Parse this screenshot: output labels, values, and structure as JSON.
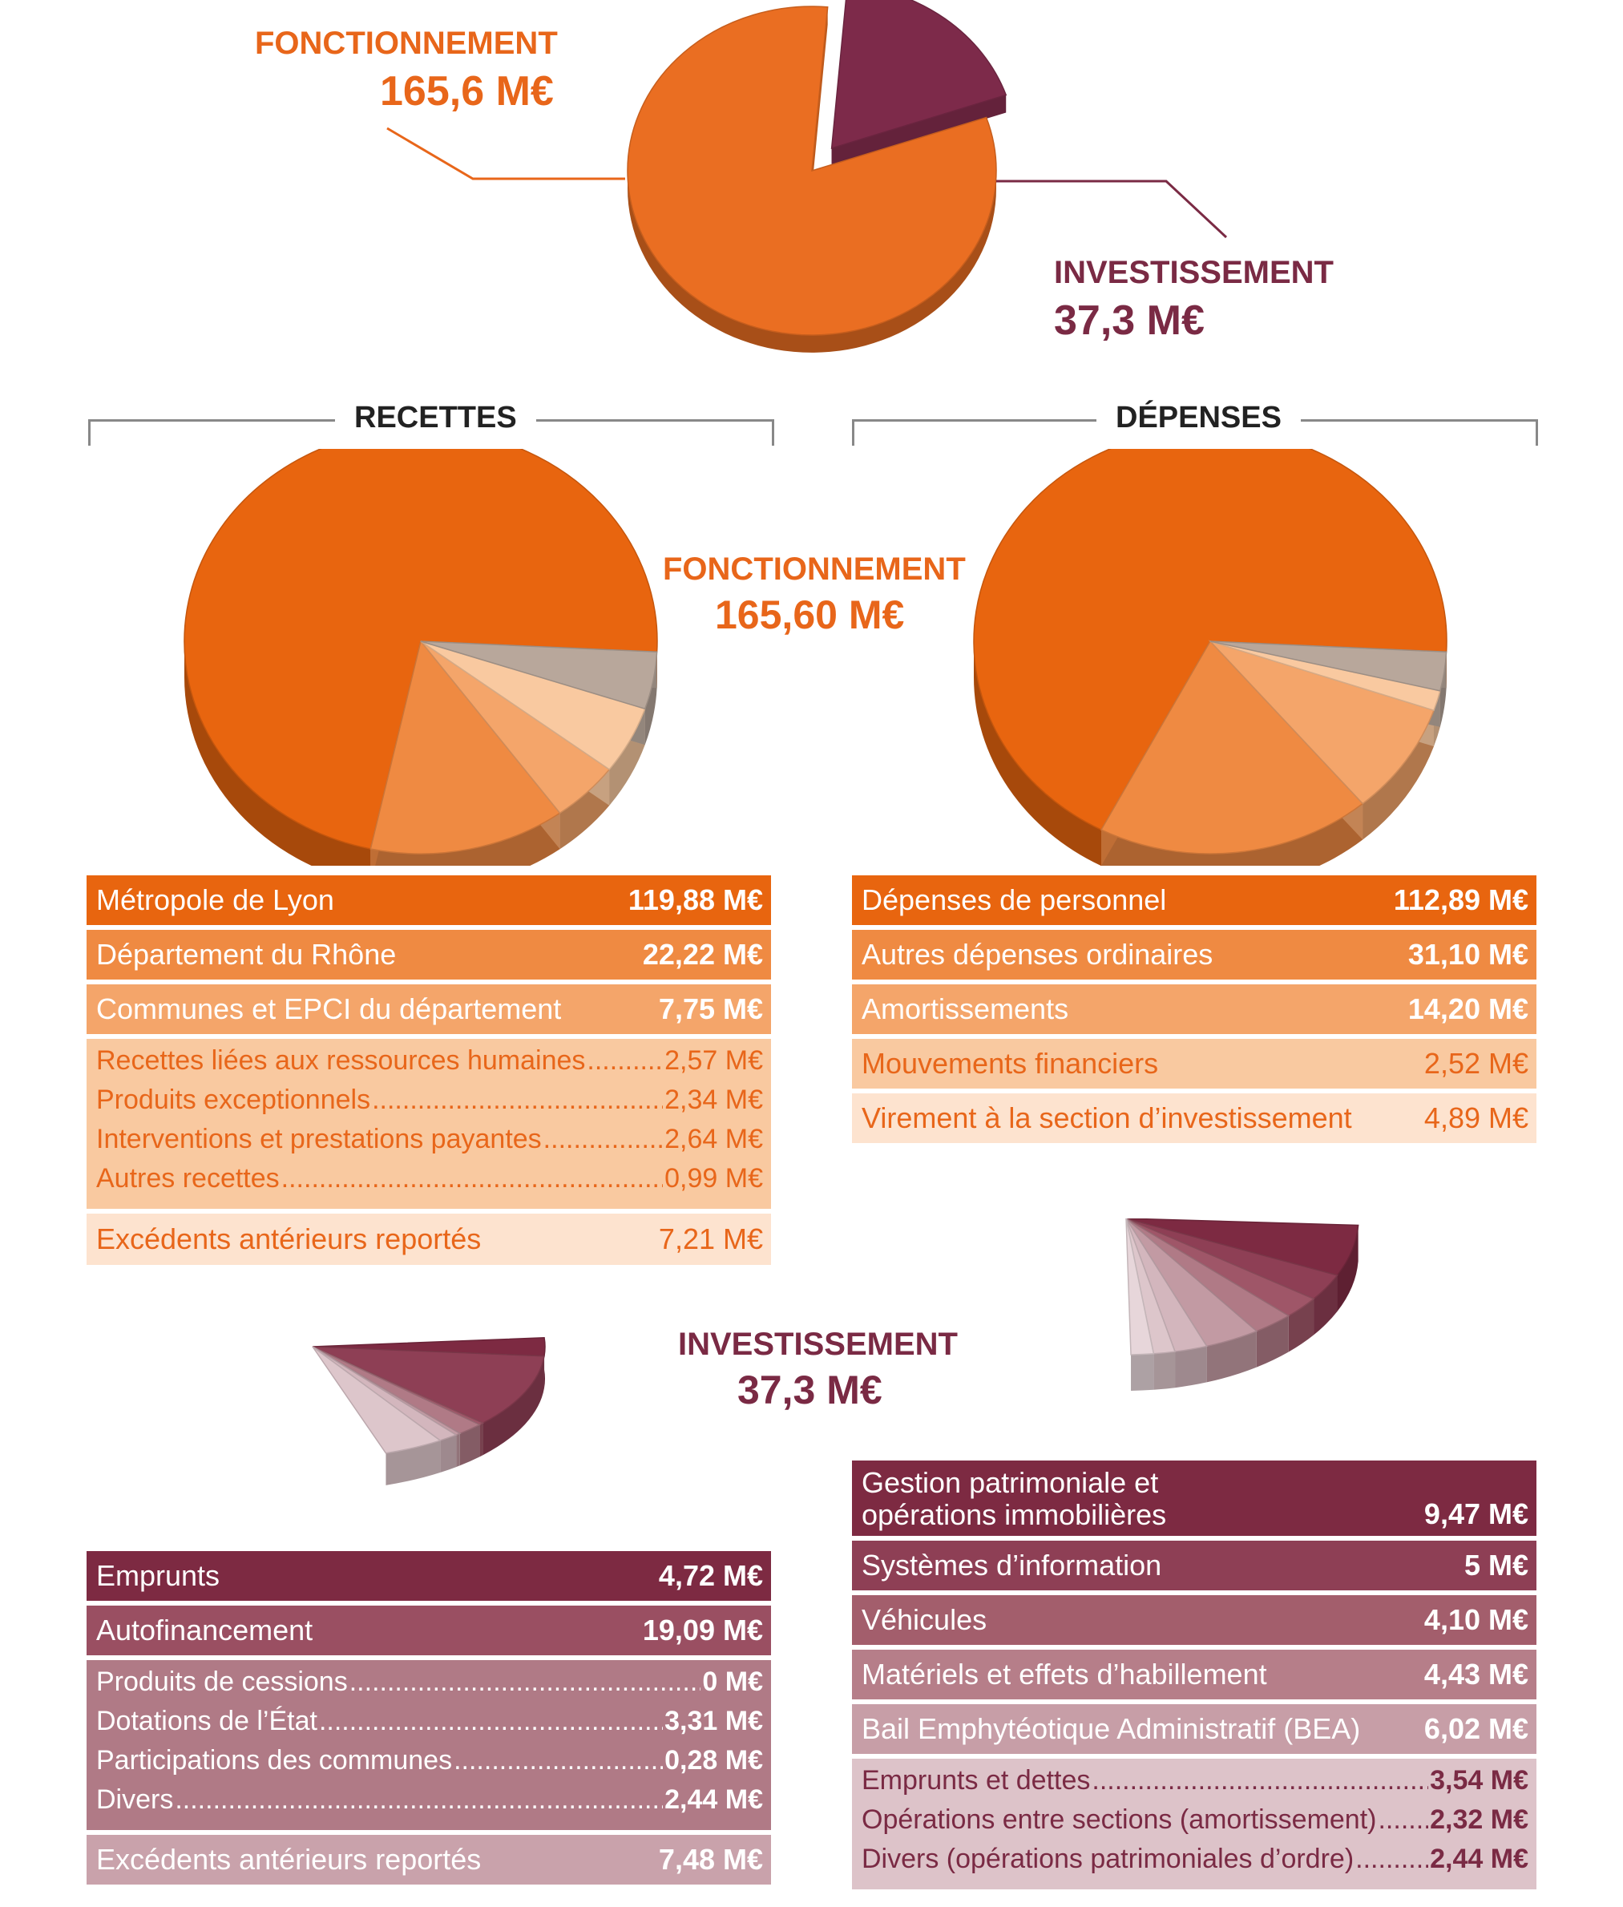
{
  "top": {
    "fonctionnement": {
      "label": "FONCTIONNEMENT",
      "value": "165,6 M€"
    },
    "investissement": {
      "label": "INVESTISSEMENT",
      "value": "37,3 M€"
    }
  },
  "headers": {
    "recettes": "RECETTES",
    "depenses": "DÉPENSES"
  },
  "middle": {
    "label": "FONCTIONNEMENT",
    "value": "165,60 M€"
  },
  "bottom": {
    "label": "INVESTISSEMENT",
    "value": "37,3 M€"
  },
  "colors": {
    "orange_dark": "#e8650f",
    "orange_mid": "#ef8a42",
    "orange_light": "#f4a56a",
    "orange_pale": "#f9c9a0",
    "orange_palest": "#fde3cf",
    "taupe": "#b8a79b",
    "plum_dark": "#7d2a42",
    "plum_mid": "#9a4f62",
    "plum_light": "#b07a86",
    "plum_pale": "#c9a2ab",
    "plum_palest": "#ddc3c9"
  },
  "recettes_fonct": [
    {
      "label": "Métropole de Lyon",
      "value": "119,88 M€"
    },
    {
      "label": "Département du Rhône",
      "value": "22,22 M€"
    },
    {
      "label": "Communes et EPCI du département",
      "value": "7,75 M€"
    },
    {
      "group": [
        {
          "label": "Recettes liées aux ressources humaines",
          "value": "2,57 M€"
        },
        {
          "label": "Produits exceptionnels",
          "value": "2,34 M€"
        },
        {
          "label": "Interventions et prestations payantes",
          "value": "2,64 M€"
        },
        {
          "label": "Autres recettes",
          "value": "0,99 M€"
        }
      ]
    },
    {
      "label": "Excédents antérieurs reportés",
      "value": "7,21 M€"
    }
  ],
  "depenses_fonct": [
    {
      "label": "Dépenses de personnel",
      "value": "112,89 M€"
    },
    {
      "label": "Autres dépenses ordinaires",
      "value": "31,10 M€"
    },
    {
      "label": "Amortissements",
      "value": "14,20 M€"
    },
    {
      "label": "Mouvements financiers",
      "value": "2,52 M€"
    },
    {
      "label": "Virement à la section d’investissement",
      "value": "4,89 M€"
    }
  ],
  "recettes_invest": [
    {
      "label": "Emprunts",
      "value": "4,72 M€"
    },
    {
      "label": "Autofinancement",
      "value": "19,09 M€"
    },
    {
      "group": [
        {
          "label": "Produits de cessions",
          "value": "0 M€"
        },
        {
          "label": "Dotations de l’État",
          "value": "3,31 M€"
        },
        {
          "label": "Participations des communes",
          "value": "0,28 M€"
        },
        {
          "label": "Divers",
          "value": "2,44 M€"
        }
      ]
    },
    {
      "label": "Excédents antérieurs reportés",
      "value": "7,48 M€"
    }
  ],
  "depenses_invest": [
    {
      "label": "Gestion patrimoniale et opérations immobilières",
      "value": "9,47 M€"
    },
    {
      "label": "Systèmes d’information",
      "value": "5 M€"
    },
    {
      "label": "Véhicules",
      "value": "4,10 M€"
    },
    {
      "label": "Matériels et effets d’habillement",
      "value": "4,43 M€"
    },
    {
      "label": "Bail Emphytéotique Administratif (BEA)",
      "value": "6,02 M€"
    },
    {
      "group": [
        {
          "label": "Emprunts et dettes",
          "value": "3,54 M€"
        },
        {
          "label": "Opérations entre sections (amortissement)",
          "value": "2,32 M€"
        },
        {
          "label": "Divers (opérations patrimoniales d’ordre)",
          "value": "2,44 M€"
        }
      ]
    }
  ],
  "chart_data": [
    {
      "type": "pie",
      "series": [
        {
          "values": [
            165.6,
            37.3
          ]
        }
      ],
      "categories": [
        "FONCTIONNEMENT",
        "INVESTISSEMENT"
      ]
    },
    {
      "type": "pie",
      "categories": [
        "Métropole de Lyon",
        "Département du Rhône",
        "Communes et EPCI du département",
        "Recettes liées aux ressources humaines",
        "Produits exceptionnels",
        "Interventions et prestations payantes",
        "Autres recettes",
        "Excédents antérieurs reportés"
      ],
      "values": [
        119.88,
        22.22,
        7.75,
        2.57,
        2.34,
        2.64,
        0.99,
        7.21
      ]
    },
    {
      "type": "pie",
      "categories": [
        "Dépenses de personnel",
        "Autres dépenses ordinaires",
        "Amortissements",
        "Mouvements financiers",
        "Virement à la section d’investissement"
      ],
      "values": [
        112.89,
        31.1,
        14.2,
        2.52,
        4.89
      ]
    },
    {
      "type": "pie",
      "categories": [
        "Emprunts",
        "Autofinancement",
        "Produits de cessions",
        "Dotations de l’État",
        "Participations des communes",
        "Divers",
        "Excédents antérieurs reportés"
      ],
      "values": [
        4.72,
        19.09,
        0,
        3.31,
        0.28,
        2.44,
        7.48
      ]
    },
    {
      "type": "pie",
      "categories": [
        "Gestion patrimoniale et opérations immobilières",
        "Systèmes d’information",
        "Véhicules",
        "Matériels et effets d’habillement",
        "Bail Emphytéotique Administratif (BEA)",
        "Emprunts et dettes",
        "Opérations entre sections (amortissement)",
        "Divers (opérations patrimoniales d’ordre)"
      ],
      "values": [
        9.47,
        5,
        4.1,
        4.43,
        6.02,
        3.54,
        2.32,
        2.44
      ]
    }
  ]
}
